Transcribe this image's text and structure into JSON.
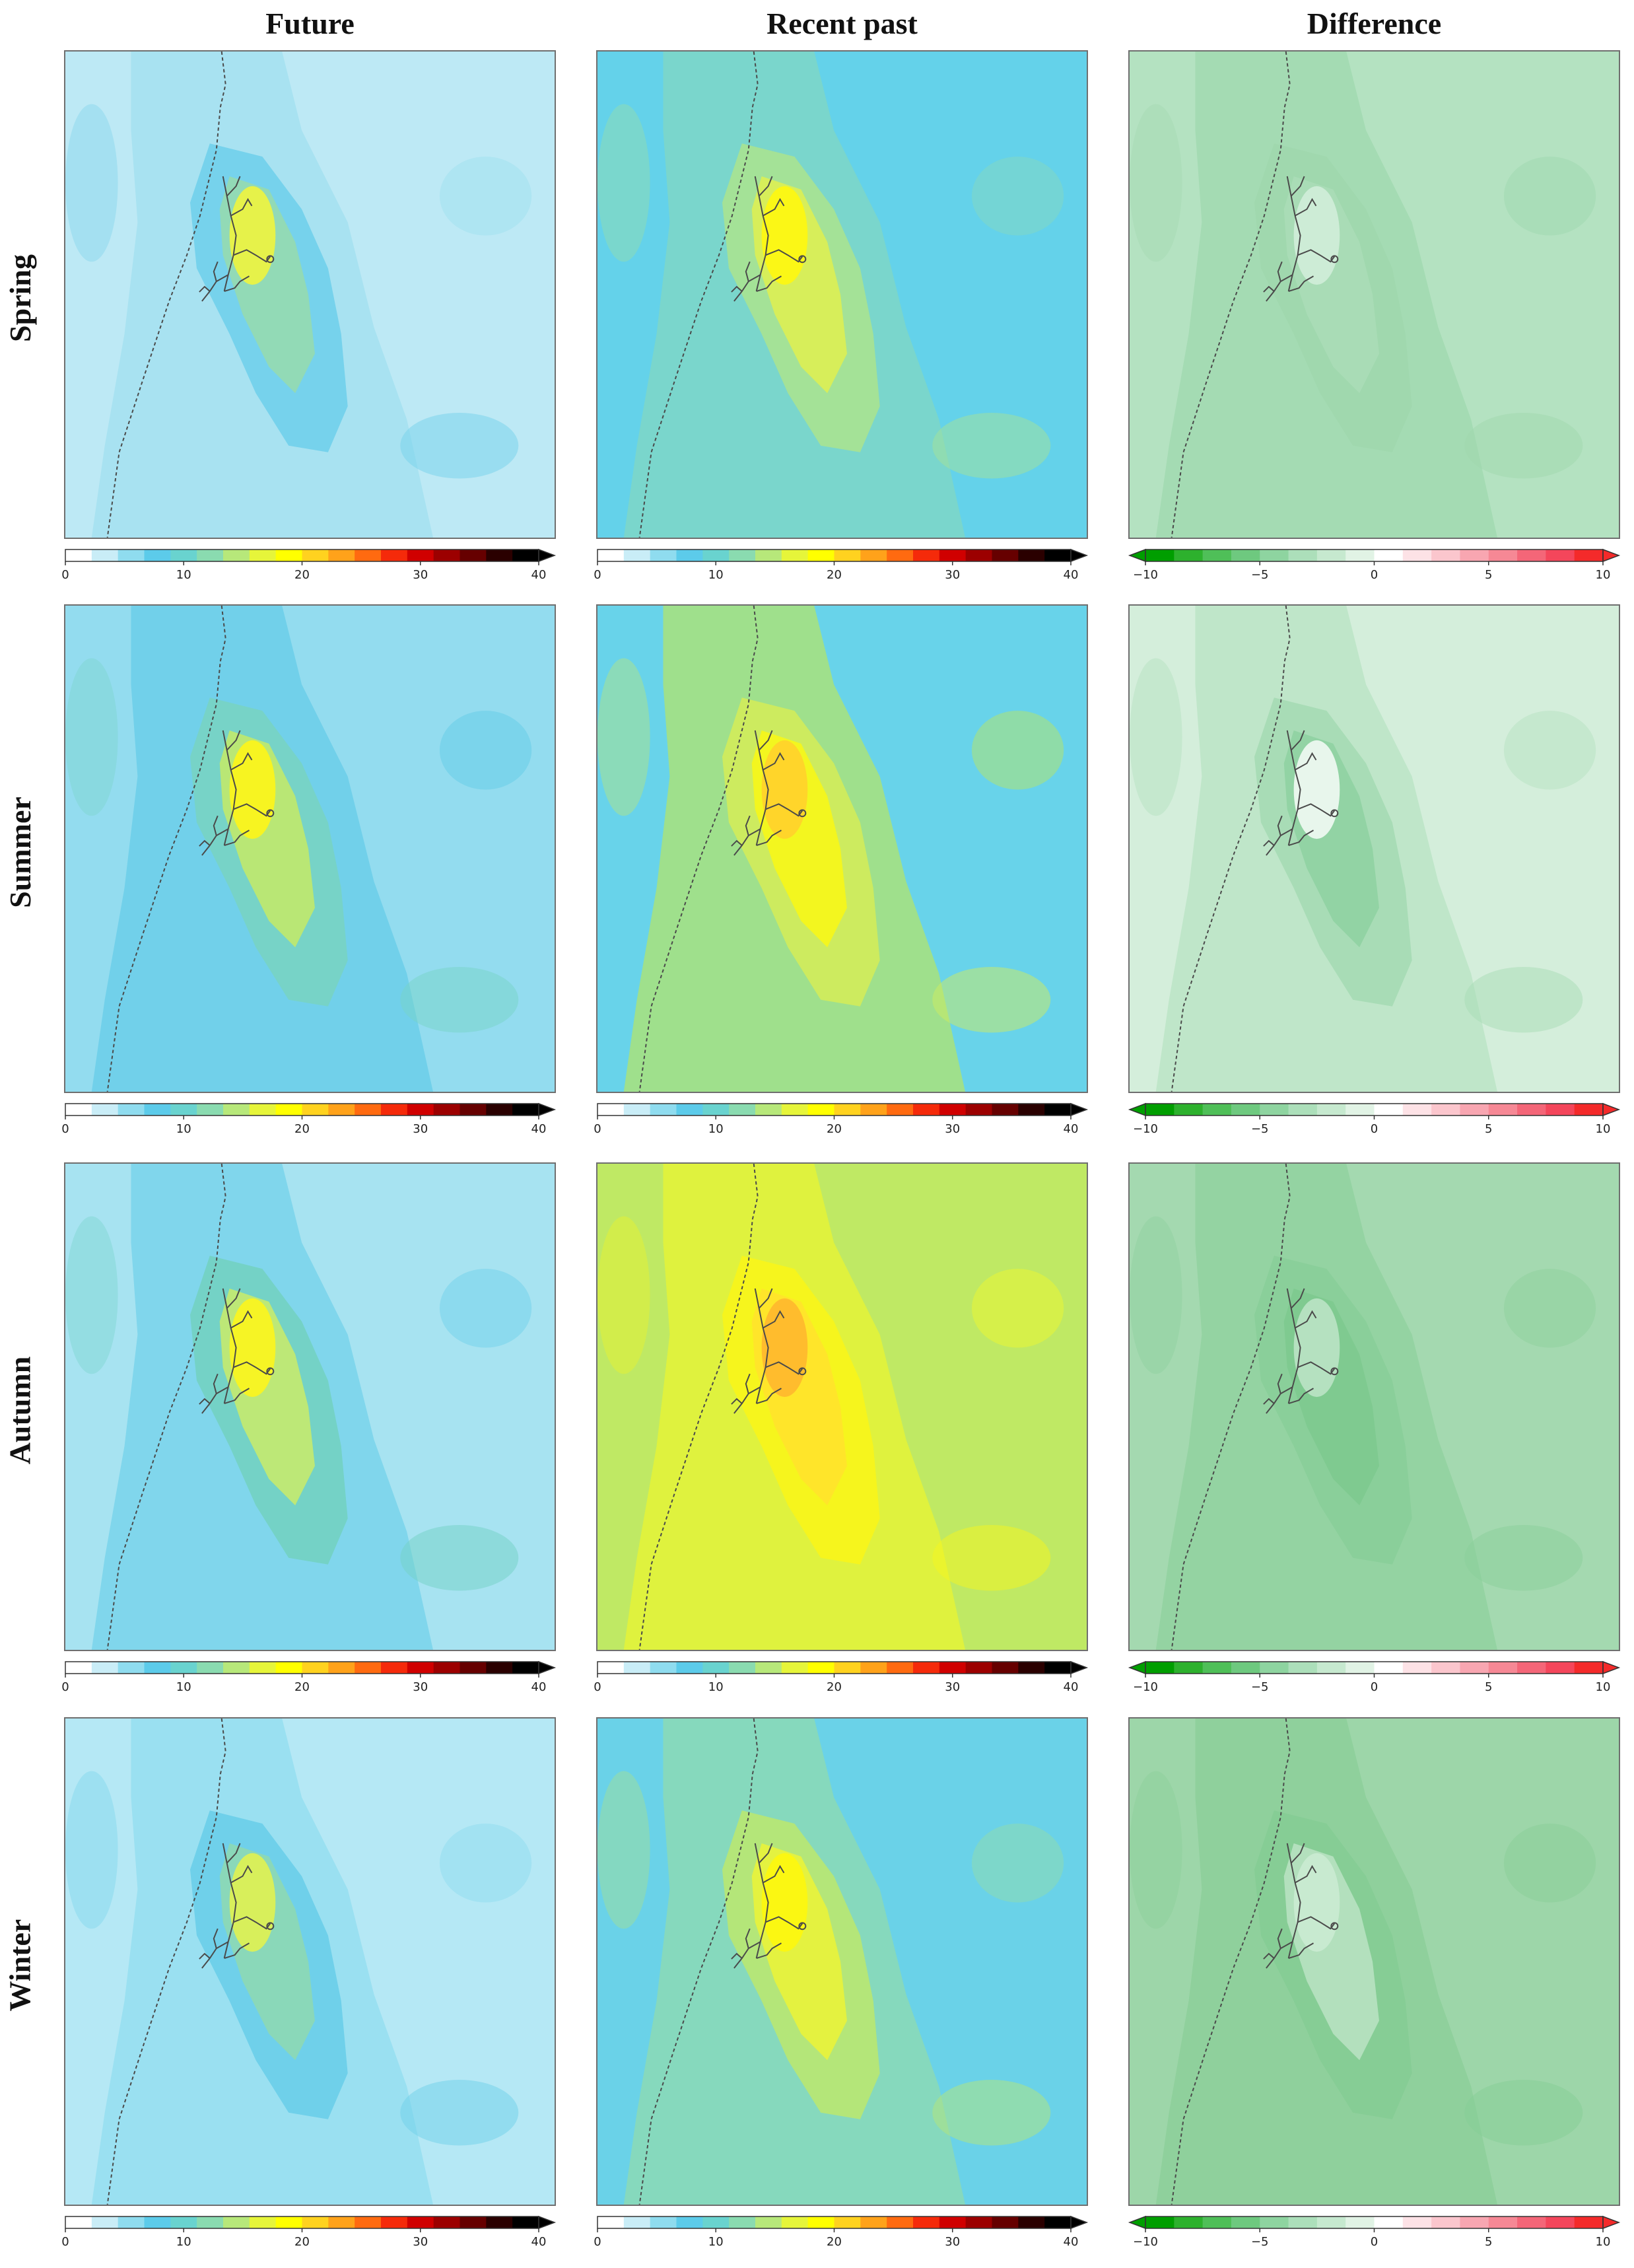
{
  "columns": [
    "Future",
    "Recent past",
    "Difference"
  ],
  "rows": [
    "Spring",
    "Summer",
    "Autumn",
    "Winter"
  ],
  "colorbars": {
    "absolute": {
      "ticks": [
        "0",
        "10",
        "20",
        "30",
        "40"
      ],
      "range": [
        0,
        40
      ],
      "extend": "max",
      "colors": [
        "#ffffff",
        "#c9edf7",
        "#8fdcef",
        "#5ccbea",
        "#69d3cf",
        "#8adbb0",
        "#b7e87a",
        "#e6f53a",
        "#ffff00",
        "#ffd21f",
        "#ffa21a",
        "#ff6a10",
        "#f52a0a",
        "#d00000",
        "#9c0000",
        "#660000",
        "#2a0000",
        "#000000"
      ]
    },
    "difference": {
      "ticks": [
        "−10",
        "−5",
        "0",
        "5",
        "10"
      ],
      "range": [
        -10,
        10
      ],
      "extend": "both",
      "colors": [
        "#009e00",
        "#2db12d",
        "#4fbf58",
        "#6ec97f",
        "#8ed4a0",
        "#acdfba",
        "#c6e9cf",
        "#e1f3e5",
        "#ffffff",
        "#fde2e6",
        "#fbc6cd",
        "#f8a6b1",
        "#f68895",
        "#f46678",
        "#f4465b",
        "#f42a2a"
      ]
    }
  },
  "panels": {
    "Spring": {
      "Future": {
        "bg": "#bde9f5",
        "mid": "#a8e2f1",
        "core1": "#76d2ec",
        "core2": "#92dab6",
        "peak": "#e6f24a"
      },
      "Recent past": {
        "bg": "#64d2ea",
        "mid": "#7ad6cc",
        "core1": "#a4e297",
        "core2": "#d7ee5a",
        "peak": "#fbf716"
      },
      "Difference": {
        "bg": "#b4e2c1",
        "mid": "#a4dbb3",
        "core1": "#a0d8ae",
        "core2": "#a9dcb6",
        "peak": "#cdecd6"
      }
    },
    "Summer": {
      "Future": {
        "bg": "#93dcef",
        "mid": "#71d0ea",
        "core1": "#77d3c7",
        "core2": "#b9e775",
        "peak": "#f7f421"
      },
      "Recent past": {
        "bg": "#68d3ea",
        "mid": "#9fe08c",
        "core1": "#cdeb5f",
        "core2": "#f3f61f",
        "peak": "#ffd52a"
      },
      "Difference": {
        "bg": "#d4eedb",
        "mid": "#bfe6c9",
        "core1": "#a8dcb6",
        "core2": "#92d3a4",
        "peak": "#e8f6ec"
      }
    },
    "Autumn": {
      "Future": {
        "bg": "#a7e3f1",
        "mid": "#80d6ec",
        "core1": "#74d2c6",
        "core2": "#bde877",
        "peak": "#f6f425"
      },
      "Recent past": {
        "bg": "#bfe964",
        "mid": "#dff23e",
        "core1": "#f6f51d",
        "core2": "#ffe52a",
        "peak": "#ffbc2d"
      },
      "Difference": {
        "bg": "#a4d9b0",
        "mid": "#94d3a2",
        "core1": "#8acf9a",
        "core2": "#7fca90",
        "peak": "#b5e1c0"
      }
    },
    "Winter": {
      "Future": {
        "bg": "#b5e8f5",
        "mid": "#9ae0f1",
        "core1": "#6fd0ea",
        "core2": "#8ad8b9",
        "peak": "#d8ef5b"
      },
      "Recent past": {
        "bg": "#6ad2e8",
        "mid": "#86d9bd",
        "core1": "#b4e679",
        "core2": "#e4f240",
        "peak": "#fbf712"
      },
      "Difference": {
        "bg": "#9dd6a9",
        "mid": "#8fd09c",
        "core1": "#86cd95",
        "core2": "#b3e0bd",
        "peak": "#c8ead0"
      }
    }
  }
}
